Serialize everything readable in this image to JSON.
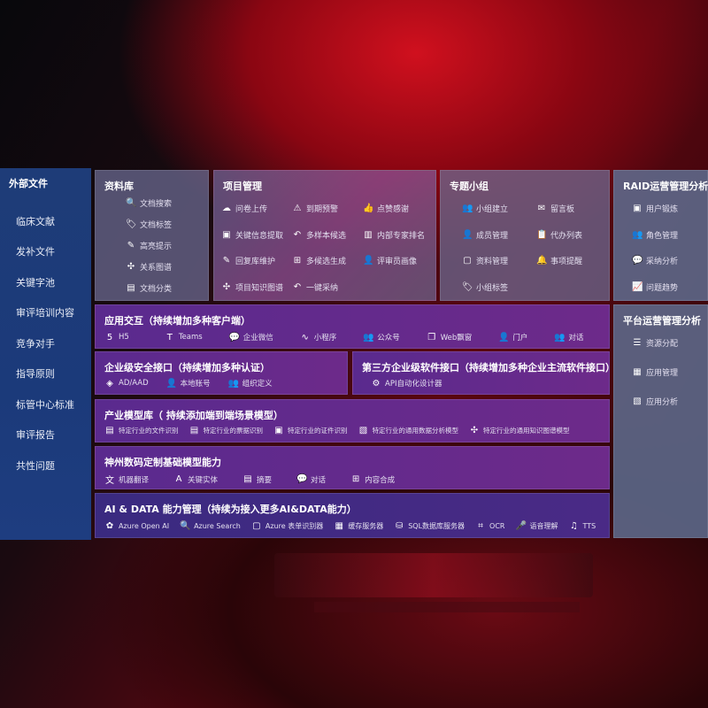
{
  "sidebar": {
    "title": "外部文件",
    "items": [
      "临床文献",
      "发补文件",
      "关键字池",
      "审评培训内容",
      "竞争对手",
      "指导原则",
      "标管中心标准",
      "审评报告",
      "共性问题"
    ]
  },
  "library": {
    "title": "资料库",
    "items": [
      {
        "label": "文档搜索",
        "icon": "document-search-icon",
        "glyph": "🔍"
      },
      {
        "label": "文档标签",
        "icon": "tag-icon",
        "glyph": "🏷"
      },
      {
        "label": "高亮提示",
        "icon": "pen-icon",
        "glyph": "✎"
      },
      {
        "label": "关系图谱",
        "icon": "graph-icon",
        "glyph": "✣"
      },
      {
        "label": "文档分类",
        "icon": "document-category-icon",
        "glyph": "▤"
      }
    ]
  },
  "project": {
    "title": "项目管理",
    "items": [
      {
        "label": "问卷上传",
        "icon": "cloud-upload-icon",
        "glyph": "☁"
      },
      {
        "label": "到期预警",
        "icon": "alarm-icon",
        "glyph": "⚠"
      },
      {
        "label": "点赞感谢",
        "icon": "thumbs-up-icon",
        "glyph": "👍"
      },
      {
        "label": "关键信息提取",
        "icon": "window-icon",
        "glyph": "▣"
      },
      {
        "label": "多样本候选",
        "icon": "reply-icon",
        "glyph": "↶"
      },
      {
        "label": "内部专家排名",
        "icon": "ranking-icon",
        "glyph": "▥"
      },
      {
        "label": "回复库维护",
        "icon": "edit-icon",
        "glyph": "✎"
      },
      {
        "label": "多候选生成",
        "icon": "puzzle-icon",
        "glyph": "⊞"
      },
      {
        "label": "评审员画像",
        "icon": "user-icon",
        "glyph": "👤"
      },
      {
        "label": "项目知识图谱",
        "icon": "graph-icon",
        "glyph": "✣"
      },
      {
        "label": "一键采纳",
        "icon": "reply-icon",
        "glyph": "↶"
      }
    ]
  },
  "group": {
    "title": "专题小组",
    "items": [
      {
        "label": "小组建立",
        "icon": "group-icon",
        "glyph": "👥"
      },
      {
        "label": "留言板",
        "icon": "bbs-icon",
        "glyph": "✉"
      },
      {
        "label": "成员管理",
        "icon": "user-add-icon",
        "glyph": "👤"
      },
      {
        "label": "代办列表",
        "icon": "clipboard-icon",
        "glyph": "📋"
      },
      {
        "label": "资料管理",
        "icon": "folder-icon",
        "glyph": "▢"
      },
      {
        "label": "事项提醒",
        "icon": "bell-icon",
        "glyph": "🔔"
      },
      {
        "label": "小组标签",
        "icon": "tag-icon",
        "glyph": "🏷"
      }
    ]
  },
  "raid": {
    "title": "RAID运营管理分析",
    "items": [
      {
        "label": "用户锻炼",
        "icon": "id-card-icon",
        "glyph": "▣"
      },
      {
        "label": "角色管理",
        "icon": "users-icon",
        "glyph": "👥"
      },
      {
        "label": "采纳分析",
        "icon": "qa-icon",
        "glyph": "💬"
      },
      {
        "label": "问题趋势",
        "icon": "trend-icon",
        "glyph": "📈"
      }
    ]
  },
  "platform": {
    "title": "平台运营管理分析",
    "items": [
      {
        "label": "资源分配",
        "icon": "list-icon",
        "glyph": "☰"
      },
      {
        "label": "应用管理",
        "icon": "apps-icon",
        "glyph": "▦"
      },
      {
        "label": "应用分析",
        "icon": "chart-icon",
        "glyph": "▧"
      }
    ]
  },
  "interaction": {
    "title": "应用交互（持续增加多种客户端）",
    "items": [
      {
        "label": "H5",
        "icon": "html5-icon",
        "glyph": "5"
      },
      {
        "label": "Teams",
        "icon": "teams-icon",
        "glyph": "T"
      },
      {
        "label": "企业微信",
        "icon": "wechat-icon",
        "glyph": "💬"
      },
      {
        "label": "小程序",
        "icon": "mini-program-icon",
        "glyph": "∿"
      },
      {
        "label": "公众号",
        "icon": "users-icon",
        "glyph": "👥"
      },
      {
        "label": "Web飘窗",
        "icon": "window-icon",
        "glyph": "❐"
      },
      {
        "label": "门户",
        "icon": "portal-icon",
        "glyph": "👤"
      },
      {
        "label": "对话",
        "icon": "chat-users-icon",
        "glyph": "👥"
      }
    ]
  },
  "security": {
    "title": "企业级安全接口（持续增加多种认证）",
    "items": [
      {
        "label": "AD/AAD",
        "icon": "ad-icon",
        "glyph": "◈"
      },
      {
        "label": "本地账号",
        "icon": "account-icon",
        "glyph": "👤"
      },
      {
        "label": "组织定义",
        "icon": "organization-icon",
        "glyph": "👥"
      }
    ]
  },
  "thirdparty": {
    "title": "第三方企业级软件接口（持续增加多种企业主流软件接口）",
    "items": [
      {
        "label": "API自动化设计器",
        "icon": "gear-icon",
        "glyph": "⚙"
      }
    ]
  },
  "industry": {
    "title": "产业模型库（ 持续添加端到端场景模型）",
    "items": [
      {
        "label": "特定行业的文件识别",
        "icon": "file-icon",
        "glyph": "▤"
      },
      {
        "label": "特定行业的票据识别",
        "icon": "receipt-icon",
        "glyph": "▤"
      },
      {
        "label": "特定行业的证件识别",
        "icon": "id-card-icon",
        "glyph": "▣"
      },
      {
        "label": "特定行业的通用数据分析模型",
        "icon": "chart-icon",
        "glyph": "▧"
      },
      {
        "label": "特定行业的通用知识图谱模型",
        "icon": "graph-icon",
        "glyph": "✣"
      }
    ]
  },
  "foundation": {
    "title": "神州数码定制基础模型能力",
    "items": [
      {
        "label": "机器翻译",
        "icon": "translate-icon",
        "glyph": "文"
      },
      {
        "label": "关键实体",
        "icon": "entity-icon",
        "glyph": "A"
      },
      {
        "label": "摘要",
        "icon": "summary-icon",
        "glyph": "▤"
      },
      {
        "label": "对话",
        "icon": "chat-icon",
        "glyph": "💬"
      },
      {
        "label": "内容合成",
        "icon": "puzzle-icon",
        "glyph": "⊞"
      }
    ]
  },
  "aidata": {
    "title": "AI & DATA 能力管理（持续为接入更多AI&DATA能力）",
    "items": [
      {
        "label": "Azure Open AI",
        "icon": "openai-icon",
        "glyph": "✿"
      },
      {
        "label": "Azure Search",
        "icon": "search-icon",
        "glyph": "🔍"
      },
      {
        "label": "Azure 表单识别器",
        "icon": "form-icon",
        "glyph": "▢"
      },
      {
        "label": "缓存服务器",
        "icon": "cache-server-icon",
        "glyph": "▦"
      },
      {
        "label": "SQL数据库服务器",
        "icon": "database-icon",
        "glyph": "⛁"
      },
      {
        "label": "OCR",
        "icon": "ocr-icon",
        "glyph": "⌗"
      },
      {
        "label": "语音理解",
        "icon": "voice-icon",
        "glyph": "🎤"
      },
      {
        "label": "TTS",
        "icon": "tts-icon",
        "glyph": "♫"
      }
    ]
  }
}
